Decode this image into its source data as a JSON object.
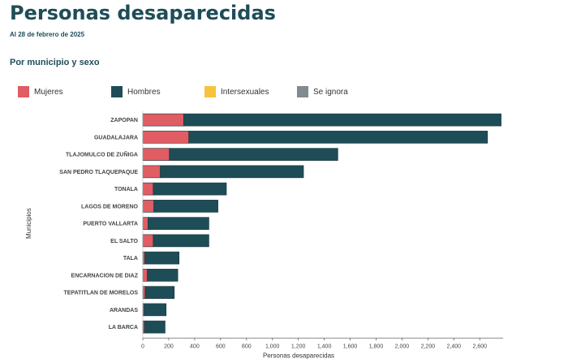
{
  "page": {
    "title": "Personas desaparecidas",
    "date": "Al 28 de febrero de 2025",
    "subtitle": "Por municipio y sexo"
  },
  "chart_data": {
    "type": "bar",
    "orientation": "horizontal",
    "stacked": true,
    "categories": [
      "ZAPOPAN",
      "GUADALAJARA",
      "TLAJOMULCO DE ZUÑIGA",
      "SAN PEDRO TLAQUEPAQUE",
      "TONALA",
      "LAGOS DE MORENO",
      "PUERTO VALLARTA",
      "EL SALTO",
      "TALA",
      "ENCARNACION DE DIAZ",
      "TEPATITLAN DE MORELOS",
      "ARANDAS",
      "LA BARCA"
    ],
    "series": [
      {
        "name": "Mujeres",
        "color": "#e05d63",
        "values": [
          315,
          355,
          205,
          135,
          80,
          85,
          40,
          80,
          15,
          35,
          18,
          10,
          12
        ]
      },
      {
        "name": "Hombres",
        "color": "#1e4d57",
        "values": [
          2450,
          2305,
          1300,
          1105,
          565,
          495,
          470,
          430,
          265,
          235,
          225,
          170,
          160
        ]
      },
      {
        "name": "Intersexuales",
        "color": "#f7c33c",
        "values": [
          0,
          0,
          0,
          0,
          0,
          0,
          0,
          0,
          0,
          0,
          0,
          0,
          0
        ]
      },
      {
        "name": "Se ignora",
        "color": "#808a8f",
        "values": [
          0,
          0,
          0,
          0,
          0,
          0,
          0,
          0,
          0,
          0,
          0,
          0,
          0
        ]
      }
    ],
    "x_ticks": [
      "0",
      "200",
      "400",
      "600",
      "800",
      "1,000",
      "1,200",
      "1,400",
      "1,600",
      "1,800",
      "2,000",
      "2,200",
      "2,400",
      "2,600"
    ],
    "xlim": [
      0,
      2780
    ],
    "xlabel": "Personas desaparecidas",
    "ylabel": "Municipios",
    "legend_position": "top",
    "grid": false
  }
}
